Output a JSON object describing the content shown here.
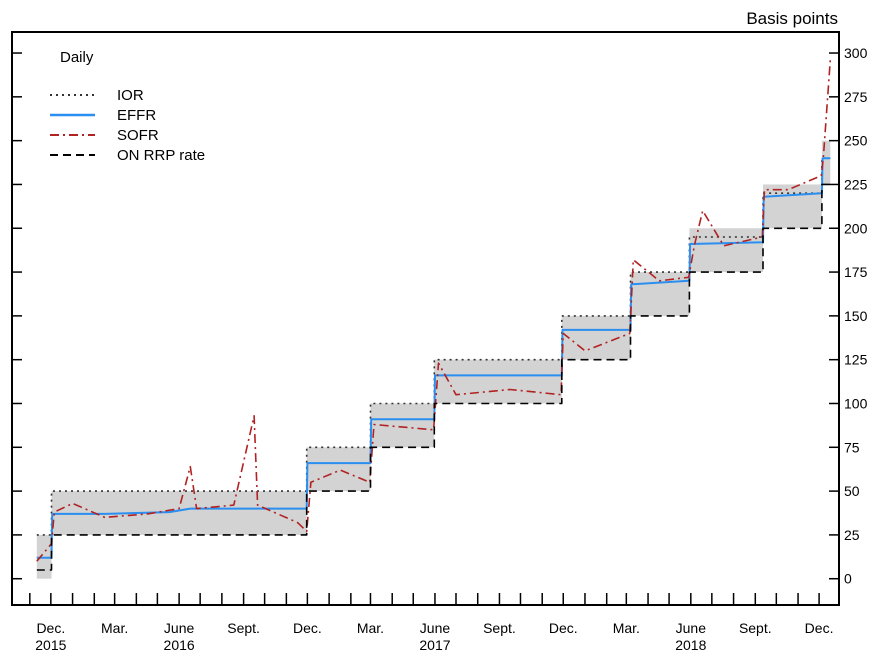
{
  "chart_data": {
    "type": "line",
    "unit_label": "Basis points",
    "frequency_label": "Daily",
    "ylim": [
      -15,
      312
    ],
    "y_ticks": [
      0,
      25,
      50,
      75,
      100,
      125,
      150,
      175,
      200,
      225,
      250,
      275,
      300
    ],
    "x_range": [
      "2015-11",
      "2019-01"
    ],
    "x_tick_labels": [
      {
        "month": "Dec.",
        "year": "2015",
        "date": "2015-12"
      },
      {
        "month": "Mar.",
        "year": "",
        "date": "2016-03"
      },
      {
        "month": "June",
        "year": "2016",
        "date": "2016-06"
      },
      {
        "month": "Sept.",
        "year": "",
        "date": "2016-09"
      },
      {
        "month": "Dec.",
        "year": "",
        "date": "2016-12"
      },
      {
        "month": "Mar.",
        "year": "",
        "date": "2017-03"
      },
      {
        "month": "June",
        "year": "2017",
        "date": "2017-06"
      },
      {
        "month": "Sept.",
        "year": "",
        "date": "2017-09"
      },
      {
        "month": "Dec.",
        "year": "",
        "date": "2017-12"
      },
      {
        "month": "Mar.",
        "year": "",
        "date": "2018-03"
      },
      {
        "month": "June",
        "year": "2018",
        "date": "2018-06"
      },
      {
        "month": "Sept.",
        "year": "",
        "date": "2018-09"
      },
      {
        "month": "Dec.",
        "year": "",
        "date": "2018-12"
      }
    ],
    "legend_position": "top-left",
    "target_range_shading": [
      {
        "start": "2015-11-25",
        "end": "2015-12-16",
        "lower": 0,
        "upper": 25
      },
      {
        "start": "2015-12-16",
        "end": "2016-12-14",
        "lower": 25,
        "upper": 50
      },
      {
        "start": "2016-12-14",
        "end": "2017-03-15",
        "lower": 50,
        "upper": 75
      },
      {
        "start": "2017-03-15",
        "end": "2017-06-14",
        "lower": 75,
        "upper": 100
      },
      {
        "start": "2017-06-14",
        "end": "2017-12-13",
        "lower": 100,
        "upper": 125
      },
      {
        "start": "2017-12-13",
        "end": "2018-03-21",
        "lower": 125,
        "upper": 150
      },
      {
        "start": "2018-03-21",
        "end": "2018-06-13",
        "lower": 150,
        "upper": 175
      },
      {
        "start": "2018-06-13",
        "end": "2018-09-26",
        "lower": 175,
        "upper": 200
      },
      {
        "start": "2018-09-26",
        "end": "2018-12-19",
        "lower": 200,
        "upper": 225
      },
      {
        "start": "2018-12-19",
        "end": "2018-12-31",
        "lower": 225,
        "upper": 250
      }
    ],
    "series": [
      {
        "name": "IOR",
        "style": "dotted",
        "color": "#333333",
        "points": [
          [
            "2015-11-25",
            25
          ],
          [
            "2015-12-16",
            50
          ],
          [
            "2016-12-14",
            75
          ],
          [
            "2017-03-15",
            100
          ],
          [
            "2017-06-14",
            125
          ],
          [
            "2017-12-13",
            150
          ],
          [
            "2018-03-21",
            175
          ],
          [
            "2018-06-13",
            195
          ],
          [
            "2018-09-26",
            220
          ],
          [
            "2018-12-19",
            240
          ],
          [
            "2018-12-31",
            240
          ]
        ]
      },
      {
        "name": "EFFR",
        "style": "solid",
        "color": "#2a8ff0",
        "points": [
          [
            "2015-11-25",
            12
          ],
          [
            "2015-12-16",
            12
          ],
          [
            "2015-12-17",
            37
          ],
          [
            "2016-03-01",
            37
          ],
          [
            "2016-06-01",
            38
          ],
          [
            "2016-07-01",
            40
          ],
          [
            "2016-12-14",
            40
          ],
          [
            "2016-12-15",
            66
          ],
          [
            "2017-03-15",
            66
          ],
          [
            "2017-03-16",
            91
          ],
          [
            "2017-06-14",
            91
          ],
          [
            "2017-06-15",
            116
          ],
          [
            "2017-12-13",
            116
          ],
          [
            "2017-12-14",
            142
          ],
          [
            "2018-03-21",
            142
          ],
          [
            "2018-03-22",
            168
          ],
          [
            "2018-06-13",
            170
          ],
          [
            "2018-06-14",
            191
          ],
          [
            "2018-09-26",
            192
          ],
          [
            "2018-09-27",
            218
          ],
          [
            "2018-12-19",
            220
          ],
          [
            "2018-12-20",
            240
          ],
          [
            "2018-12-31",
            240
          ]
        ]
      },
      {
        "name": "SOFR",
        "style": "dash-dot",
        "color": "#b22222",
        "points": [
          [
            "2015-11-25",
            10
          ],
          [
            "2015-12-16",
            20
          ],
          [
            "2015-12-20",
            38
          ],
          [
            "2016-01-15",
            43
          ],
          [
            "2016-03-01",
            35
          ],
          [
            "2016-05-01",
            37
          ],
          [
            "2016-06-15",
            40
          ],
          [
            "2016-07-01",
            64
          ],
          [
            "2016-07-10",
            40
          ],
          [
            "2016-09-01",
            42
          ],
          [
            "2016-09-30",
            93
          ],
          [
            "2016-10-05",
            42
          ],
          [
            "2016-12-01",
            32
          ],
          [
            "2016-12-14",
            27
          ],
          [
            "2016-12-20",
            55
          ],
          [
            "2017-01-31",
            62
          ],
          [
            "2017-03-14",
            55
          ],
          [
            "2017-03-20",
            88
          ],
          [
            "2017-06-13",
            85
          ],
          [
            "2017-06-20",
            123
          ],
          [
            "2017-07-15",
            105
          ],
          [
            "2017-09-30",
            108
          ],
          [
            "2017-12-12",
            105
          ],
          [
            "2017-12-15",
            140
          ],
          [
            "2018-01-15",
            130
          ],
          [
            "2018-03-20",
            140
          ],
          [
            "2018-03-25",
            182
          ],
          [
            "2018-05-01",
            170
          ],
          [
            "2018-06-12",
            172
          ],
          [
            "2018-06-20",
            190
          ],
          [
            "2018-07-02",
            210
          ],
          [
            "2018-08-01",
            190
          ],
          [
            "2018-09-25",
            195
          ],
          [
            "2018-09-28",
            222
          ],
          [
            "2018-11-01",
            222
          ],
          [
            "2018-12-18",
            230
          ],
          [
            "2018-12-21",
            240
          ],
          [
            "2018-12-31",
            296
          ]
        ]
      },
      {
        "name": "ON RRP rate",
        "style": "dashed",
        "color": "#000000",
        "points": [
          [
            "2015-11-25",
            5
          ],
          [
            "2015-12-16",
            25
          ],
          [
            "2016-12-14",
            50
          ],
          [
            "2017-03-15",
            75
          ],
          [
            "2017-06-14",
            100
          ],
          [
            "2017-12-13",
            125
          ],
          [
            "2018-03-21",
            150
          ],
          [
            "2018-06-13",
            175
          ],
          [
            "2018-09-26",
            200
          ],
          [
            "2018-12-19",
            225
          ],
          [
            "2018-12-31",
            225
          ]
        ]
      }
    ]
  }
}
